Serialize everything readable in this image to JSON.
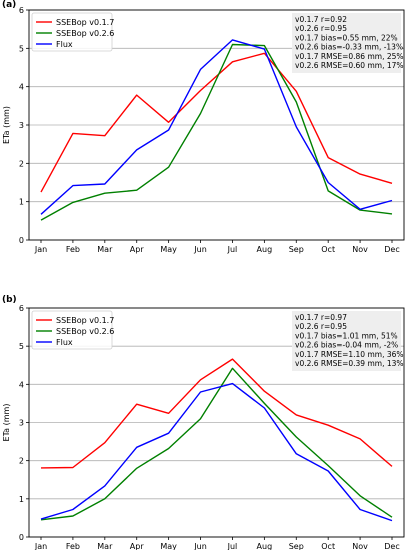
{
  "chart_data": [
    {
      "type": "line",
      "title": "",
      "panel_label": "(a)",
      "xlabel": "",
      "ylabel": "ETa (mm)",
      "categories": [
        "Jan",
        "Feb",
        "Mar",
        "Apr",
        "May",
        "Jun",
        "Jul",
        "Aug",
        "Sep",
        "Oct",
        "Nov",
        "Dec"
      ],
      "ylim": [
        0,
        6
      ],
      "yticks": [
        "0",
        "1",
        "2",
        "3",
        "4",
        "5",
        "6"
      ],
      "grid": "horizontal",
      "legend": "top-left",
      "series": [
        {
          "name": "SSEBop v0.1.7",
          "color": "#ff0000",
          "values": [
            1.25,
            2.78,
            2.72,
            3.78,
            3.07,
            3.9,
            4.65,
            4.87,
            3.88,
            2.15,
            1.72,
            1.48
          ]
        },
        {
          "name": "SSEBop v0.2.6",
          "color": "#008000",
          "values": [
            0.52,
            0.98,
            1.22,
            1.3,
            1.9,
            3.3,
            5.1,
            5.07,
            3.6,
            1.28,
            0.78,
            0.68
          ]
        },
        {
          "name": "Flux",
          "color": "#0000ff",
          "values": [
            0.67,
            1.42,
            1.46,
            2.35,
            2.87,
            4.45,
            5.22,
            4.98,
            2.95,
            1.5,
            0.8,
            1.03
          ]
        }
      ],
      "stats": [
        "v0.1.7 r=0.92",
        "v0.2.6 r=0.95",
        "v0.1.7 bias=0.55 mm, 22%",
        "v0.2.6 bias=-0.33 mm, -13%",
        "v0.1.7 RMSE=0.86 mm, 25%",
        "v0.2.6 RMSE=0.60 mm, 17%"
      ]
    },
    {
      "type": "line",
      "title": "",
      "panel_label": "(b)",
      "xlabel": "",
      "ylabel": "ETa (mm)",
      "categories": [
        "Jan",
        "Feb",
        "Mar",
        "Apr",
        "May",
        "Jun",
        "Jul",
        "Aug",
        "Sep",
        "Oct",
        "Nov",
        "Dec"
      ],
      "ylim": [
        0,
        6
      ],
      "yticks": [
        "0",
        "1",
        "2",
        "3",
        "4",
        "5",
        "6"
      ],
      "grid": "horizontal",
      "legend": "top-left",
      "series": [
        {
          "name": "SSEBop v0.1.7",
          "color": "#ff0000",
          "values": [
            1.81,
            1.82,
            2.47,
            3.48,
            3.24,
            4.12,
            4.66,
            3.82,
            3.2,
            2.93,
            2.57,
            1.85
          ]
        },
        {
          "name": "SSEBop v0.2.6",
          "color": "#008000",
          "values": [
            0.45,
            0.55,
            1.0,
            1.8,
            2.32,
            3.1,
            4.42,
            3.5,
            2.62,
            1.87,
            1.08,
            0.52
          ]
        },
        {
          "name": "Flux",
          "color": "#0000ff",
          "values": [
            0.47,
            0.72,
            1.34,
            2.35,
            2.72,
            3.8,
            4.02,
            3.38,
            2.18,
            1.73,
            0.72,
            0.43
          ]
        }
      ],
      "stats": [
        "v0.1.7 r=0.97",
        "v0.2.6 r=0.95",
        "v0.1.7 bias=1.01 mm, 51%",
        "v0.2.6 bias=-0.04 mm, -2%",
        "v0.1.7 RMSE=1.10 mm, 36%",
        "v0.2.6 RMSE=0.39 mm, 13%"
      ]
    }
  ]
}
